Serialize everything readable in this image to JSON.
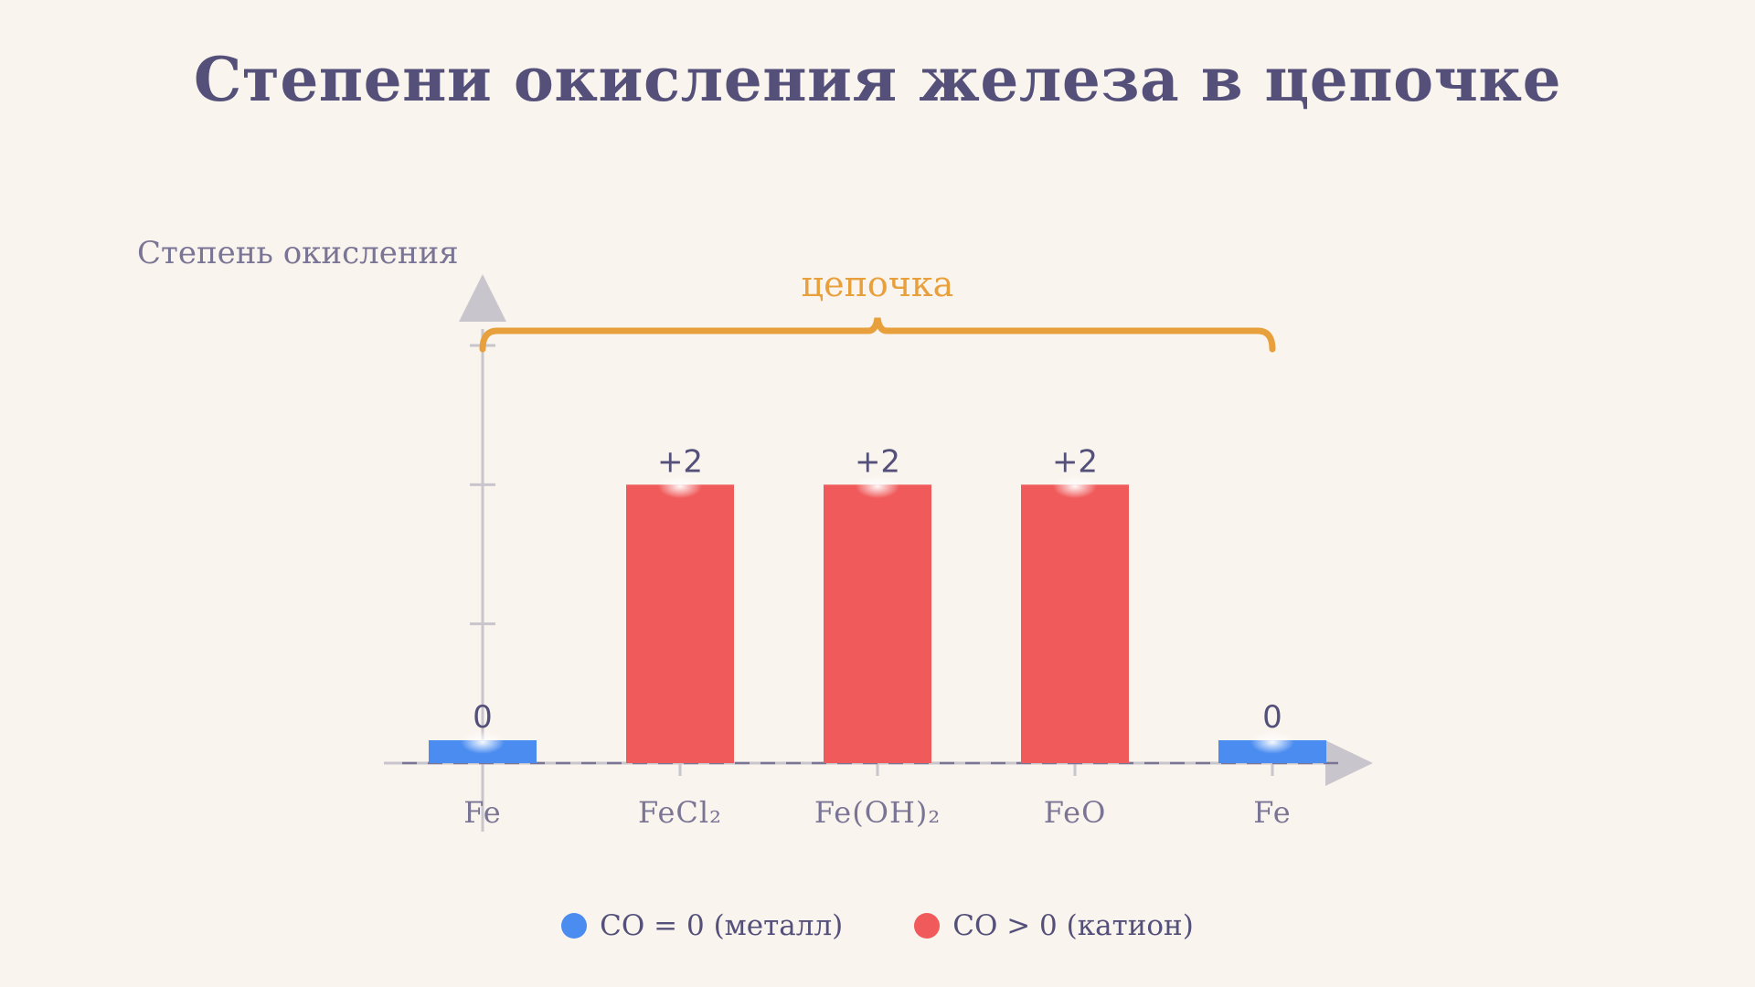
{
  "title": "Степени окисления железа в цепочке",
  "colors": {
    "metal": "#4a8cf0",
    "cation": "#f05a5a",
    "brace": "#e8a03c",
    "axis": "#c8c6cc",
    "text": "#54507a",
    "muted": "#7a7595",
    "title": "#54507a",
    "background": "#faf4ee"
  },
  "chart_data": {
    "type": "bar",
    "title": "Степени окисления железа в цепочке",
    "ylabel": "Степень окисления",
    "xlabel": "",
    "categories": [
      "Fe",
      "FeCl₂",
      "Fe(OH)₂",
      "FeO",
      "Fe"
    ],
    "values": [
      0,
      2,
      2,
      2,
      0
    ],
    "value_labels": [
      "0",
      "+2",
      "+2",
      "+2",
      "0"
    ],
    "color_keys": [
      "metal",
      "cation",
      "cation",
      "cation",
      "metal"
    ],
    "ylim": [
      0,
      3
    ],
    "yticks": [
      1,
      2,
      3
    ],
    "grid": false,
    "annotation": "цепочка",
    "legend_position": "bottom"
  },
  "legend": [
    {
      "label": "СО = 0 (металл)",
      "color": "#4a8cf0"
    },
    {
      "label": "СО > 0 (катион)",
      "color": "#f05a5a"
    }
  ]
}
